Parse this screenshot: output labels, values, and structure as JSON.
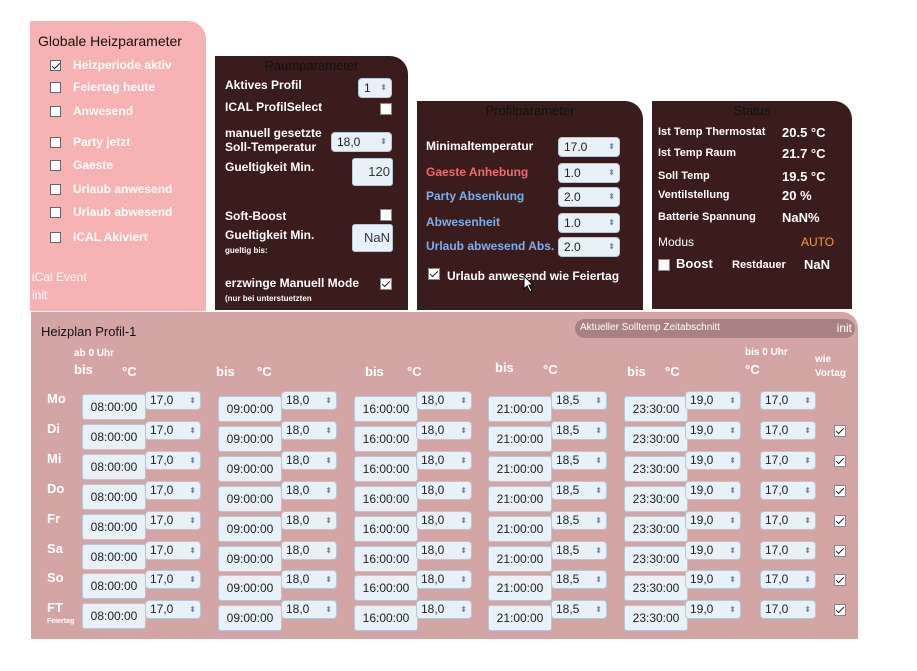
{
  "globale": {
    "title": "Globale Heizparameter",
    "items": [
      {
        "label": "Heizperiode aktiv",
        "checked": true
      },
      {
        "label": "Feiertag heute",
        "checked": false
      },
      {
        "label": "Anwesend",
        "checked": false
      },
      {
        "label": "Party jetzt",
        "checked": false
      },
      {
        "label": "Gaeste",
        "checked": false
      },
      {
        "label": "Urlaub anwesend",
        "checked": false
      },
      {
        "label": "Urlaub abwesend",
        "checked": false
      },
      {
        "label": "ICAL Akiviert",
        "checked": false
      }
    ],
    "ical_event": "iCal Event",
    "init": "init"
  },
  "raum": {
    "title": "Raumparameter",
    "aktives_profil_label": "Aktives Profil",
    "aktives_profil_value": "1",
    "ical_profilselect_label": "ICAL ProfilSelect",
    "manuell_label": "manuell gesetzte Soll-Temperatur",
    "manuell_value": "18,0",
    "gueltigkeit_label": "Gueltigkeit Min.",
    "gueltigkeit_value": "120",
    "softboost_label": "Soft-Boost",
    "gueltigkeit2_label": "Gueltigkeit Min.",
    "gueltigkeit2_sub": "gueltig bis:",
    "gueltigkeit2_value": "NaN",
    "erzwinge_label": "erzwinge Manuell Mode",
    "erzwinge_sub": "(nur bei unterstuetzten"
  },
  "profil": {
    "title": "Profilparameter",
    "rows": [
      {
        "label": "Minimaltemperatur",
        "value": "17.0",
        "color": "#ffffff"
      },
      {
        "label": "Gaeste Anhebung",
        "value": "1.0",
        "color": "#f06a6a"
      },
      {
        "label": "Party Absenkung",
        "value": "2.0",
        "color": "#7ab0f0"
      },
      {
        "label": "Abwesenheit",
        "value": "1.0",
        "color": "#7ab0f0"
      },
      {
        "label": "Urlaub abwesend Abs.",
        "value": "2.0",
        "color": "#7ab0f0"
      }
    ],
    "urlaub_wie_feiertag": "Urlaub anwesend wie Feiertag"
  },
  "status": {
    "title": "Status",
    "rows": [
      {
        "label": "Ist Temp Thermostat",
        "value": "20.5 °C"
      },
      {
        "label": "Ist Temp Raum",
        "value": "21.7 °C"
      },
      {
        "label": "Soll Temp",
        "value": "19.5 °C"
      },
      {
        "label": "Ventilstellung",
        "value": "20 %"
      },
      {
        "label": "Batterie Spannung",
        "value": "NaN%"
      }
    ],
    "modus_label": "Modus",
    "modus_value": "AUTO",
    "modus_color": "#f0a030",
    "boost_label": "Boost",
    "restdauer_label": "Restdauer",
    "restdauer_value": "NaN"
  },
  "heizplan": {
    "title": "Heizplan Profil-1",
    "aktueller": "Aktueller Solltemp Zeitabschnitt",
    "init": "init",
    "hdr_ab0": "ab 0 Uhr",
    "hdr_bis": "bis",
    "hdr_c": "°C",
    "hdr_bis0": "bis 0 Uhr",
    "hdr_wie": "wie",
    "hdr_vortag": "Vortag",
    "ft_sub": "Feiertag",
    "days": [
      {
        "day": "Mo",
        "times": [
          "08:00:00",
          "09:00:00",
          "16:00:00",
          "21:00:00",
          "23:30:00"
        ],
        "temps": [
          "17,0",
          "18,0",
          "18,0",
          "18,5",
          "19,0",
          "17,0"
        ],
        "vortag": null
      },
      {
        "day": "Di",
        "times": [
          "08:00:00",
          "09:00:00",
          "16:00:00",
          "21:00:00",
          "23:30:00"
        ],
        "temps": [
          "17,0",
          "18,0",
          "18,0",
          "18,5",
          "19,0",
          "17,0"
        ],
        "vortag": true
      },
      {
        "day": "Mi",
        "times": [
          "08:00:00",
          "09:00:00",
          "16:00:00",
          "21:00:00",
          "23:30:00"
        ],
        "temps": [
          "17,0",
          "18,0",
          "18,0",
          "18,5",
          "19,0",
          "17,0"
        ],
        "vortag": true
      },
      {
        "day": "Do",
        "times": [
          "08:00:00",
          "09:00:00",
          "16:00:00",
          "21:00:00",
          "23:30:00"
        ],
        "temps": [
          "17,0",
          "18,0",
          "18,0",
          "18,5",
          "19,0",
          "17,0"
        ],
        "vortag": true
      },
      {
        "day": "Fr",
        "times": [
          "08:00:00",
          "09:00:00",
          "16:00:00",
          "21:00:00",
          "23:30:00"
        ],
        "temps": [
          "17,0",
          "18,0",
          "18,0",
          "18,5",
          "19,0",
          "17,0"
        ],
        "vortag": true
      },
      {
        "day": "Sa",
        "times": [
          "08:00:00",
          "09:00:00",
          "16:00:00",
          "21:00:00",
          "23:30:00"
        ],
        "temps": [
          "17,0",
          "18,0",
          "18,0",
          "18,5",
          "19,0",
          "17,0"
        ],
        "vortag": true
      },
      {
        "day": "So",
        "times": [
          "08:00:00",
          "09:00:00",
          "16:00:00",
          "21:00:00",
          "23:30:00"
        ],
        "temps": [
          "17,0",
          "18,0",
          "18,0",
          "18,5",
          "19,0",
          "17,0"
        ],
        "vortag": true
      },
      {
        "day": "FT",
        "times": [
          "08:00:00",
          "09:00:00",
          "16:00:00",
          "21:00:00",
          "23:30:00"
        ],
        "temps": [
          "17,0",
          "18,0",
          "18,0",
          "18,5",
          "19,0",
          "17,0"
        ],
        "vortag": true
      }
    ]
  }
}
